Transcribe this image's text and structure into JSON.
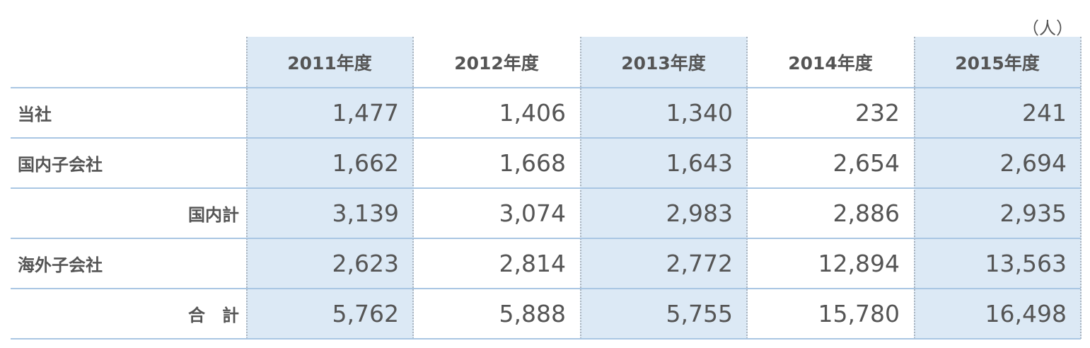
{
  "unit": "（人）",
  "table": {
    "header": [
      "2011年度",
      "2012年度",
      "2013年度",
      "2014年度",
      "2015年度"
    ],
    "rows": [
      [
        "当社",
        "1,477",
        "1,406",
        "1,340",
        "232",
        "241"
      ],
      [
        "国内子会社",
        "1,662",
        "1,668",
        "1,643",
        "2,654",
        "2,694"
      ],
      [
        "国内計",
        "3,139",
        "3,074",
        "2,983",
        "2,886",
        "2,935"
      ],
      [
        "海外子会社",
        "2,623",
        "2,814",
        "2,772",
        "12,894",
        "13,563"
      ],
      [
        "合　計",
        "5,762",
        "5,888",
        "5,755",
        "15,780",
        "16,498"
      ]
    ]
  }
}
